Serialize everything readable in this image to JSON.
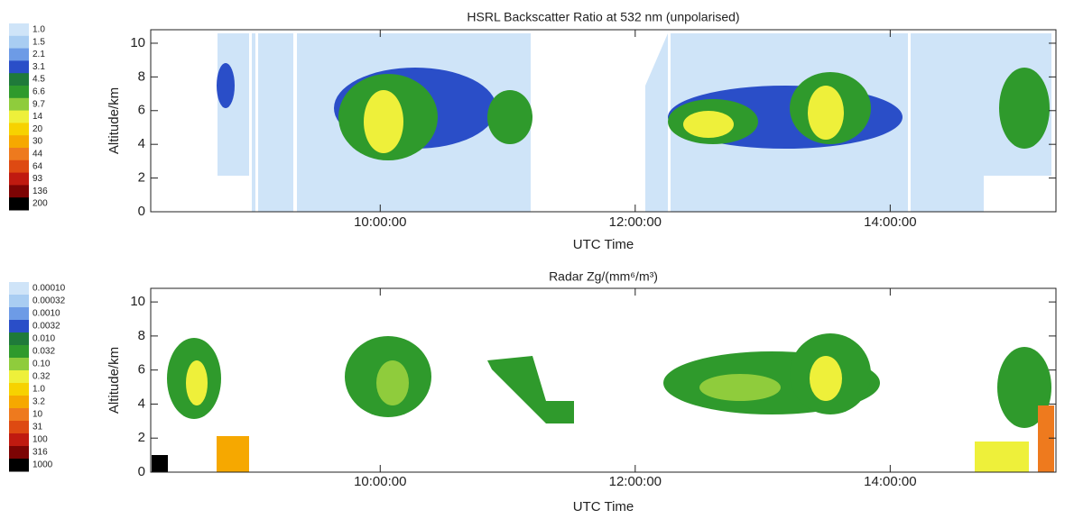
{
  "chart_data": [
    {
      "type": "heatmap",
      "title": "HSRL Backscatter Ratio at 532 nm (unpolarised)",
      "xlabel": "UTC Time",
      "ylabel": "Altitude/km",
      "xlim": [
        8.2,
        15.3
      ],
      "xticks": [
        {
          "value": 10,
          "label": "10:00:00"
        },
        {
          "value": 12,
          "label": "12:00:00"
        },
        {
          "value": 14,
          "label": "14:00:00"
        }
      ],
      "ylim": [
        0,
        10.8
      ],
      "yticks": [
        0,
        2,
        4,
        6,
        8,
        10
      ],
      "colorbar": {
        "log": true,
        "ticks": [
          {
            "value": 1,
            "label": "1.0"
          },
          1.5,
          2.1,
          3.1,
          4.5,
          6.6,
          9.7,
          14,
          20,
          30,
          44,
          64,
          93,
          136,
          200
        ],
        "colors": [
          "#cfe4f8",
          "#a9cdf2",
          "#6d9be6",
          "#2a4ec8",
          "#1f7a3a",
          "#2f9a2c",
          "#8fcc3c",
          "#eef03a",
          "#f7d200",
          "#f6a800",
          "#ee7a1e",
          "#de4a12",
          "#c01a10",
          "#7c0404",
          "#000000"
        ]
      }
    },
    {
      "type": "heatmap",
      "title": "Radar Zg/(mm⁶/m³)",
      "xlabel": "UTC Time",
      "ylabel": "Altitude/km",
      "xlim": [
        8.2,
        15.3
      ],
      "xticks": [
        {
          "value": 10,
          "label": "10:00:00"
        },
        {
          "value": 12,
          "label": "12:00:00"
        },
        {
          "value": 14,
          "label": "14:00:00"
        }
      ],
      "ylim": [
        0,
        10.8
      ],
      "yticks": [
        0,
        2,
        4,
        6,
        8,
        10
      ],
      "colorbar": {
        "log": true,
        "ticks": [
          {
            "value": 0.0001,
            "label": "0.00010"
          },
          0.00032,
          {
            "value": 0.001,
            "label": "0.0010"
          },
          0.0032,
          {
            "value": 0.01,
            "label": "0.010"
          },
          0.032,
          {
            "value": 0.1,
            "label": "0.10"
          },
          0.32,
          {
            "value": 1,
            "label": "1.0"
          },
          3.2,
          10,
          31,
          100,
          316,
          1000
        ],
        "colors": [
          "#cfe4f8",
          "#a9cdf2",
          "#6d9be6",
          "#2a4ec8",
          "#1f7a3a",
          "#2f9a2c",
          "#8fcc3c",
          "#eef03a",
          "#f7d200",
          "#f6a800",
          "#ee7a1e",
          "#de4a12",
          "#c01a10",
          "#7c0404",
          "#000000"
        ]
      }
    }
  ]
}
